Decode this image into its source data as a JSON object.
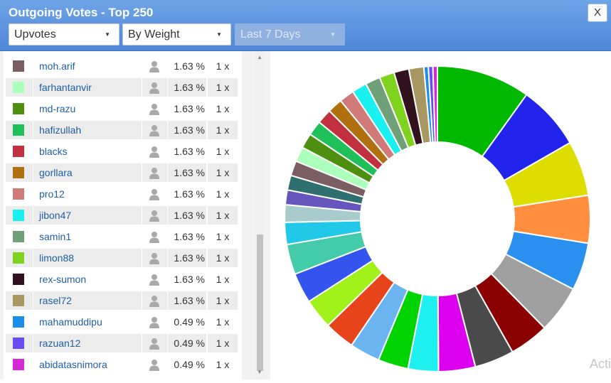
{
  "window": {
    "title": "Outgoing Votes - Top 250",
    "close_label": "X"
  },
  "filters": {
    "vote_type": "Upvotes",
    "sort": "By Weight",
    "period": "Last 7 Days"
  },
  "list": [
    {
      "name": "moh.arif",
      "color": "#7a5e62",
      "pct": "1.63 %",
      "count": "1 x"
    },
    {
      "name": "farhantanvir",
      "color": "#aaffbb",
      "pct": "1.63 %",
      "count": "1 x"
    },
    {
      "name": "md-razu",
      "color": "#4f8f10",
      "pct": "1.63 %",
      "count": "1 x"
    },
    {
      "name": "hafizullah",
      "color": "#1fbf5a",
      "pct": "1.63 %",
      "count": "1 x"
    },
    {
      "name": "blacks",
      "color": "#c0303f",
      "pct": "1.63 %",
      "count": "1 x"
    },
    {
      "name": "gorllara",
      "color": "#b07010",
      "pct": "1.63 %",
      "count": "1 x"
    },
    {
      "name": "pro12",
      "color": "#d07a7a",
      "pct": "1.63 %",
      "count": "1 x"
    },
    {
      "name": "jibon47",
      "color": "#19f0f0",
      "pct": "1.63 %",
      "count": "1 x"
    },
    {
      "name": "samin1",
      "color": "#6fa07a",
      "pct": "1.63 %",
      "count": "1 x"
    },
    {
      "name": "limon88",
      "color": "#7fd31f",
      "pct": "1.63 %",
      "count": "1 x"
    },
    {
      "name": "rex-sumon",
      "color": "#33121f",
      "pct": "1.63 %",
      "count": "1 x"
    },
    {
      "name": "rasel72",
      "color": "#a89760",
      "pct": "1.63 %",
      "count": "1 x"
    },
    {
      "name": "mahamuddipu",
      "color": "#1b8fe8",
      "pct": "0.49 %",
      "count": "1 x"
    },
    {
      "name": "razuan12",
      "color": "#6a4cf5",
      "pct": "0.49 %",
      "count": "1 x"
    },
    {
      "name": "abidatasnimora",
      "color": "#d62ad6",
      "pct": "0.49 %",
      "count": "1 x"
    }
  ],
  "chart_data": {
    "type": "pie",
    "donut": true,
    "slices": [
      {
        "color": "#00b800",
        "value": 10.2
      },
      {
        "color": "#2323ee",
        "value": 7.0
      },
      {
        "color": "#dddd00",
        "value": 6.0
      },
      {
        "color": "#ff8f3f",
        "value": 5.2
      },
      {
        "color": "#2a90f0",
        "value": 5.2
      },
      {
        "color": "#a0a0a0",
        "value": 5.2
      },
      {
        "color": "#8b0000",
        "value": 4.3
      },
      {
        "color": "#4a4a4a",
        "value": 4.3
      },
      {
        "color": "#dd00ee",
        "value": 4.0
      },
      {
        "color": "#1ef0f0",
        "value": 3.3
      },
      {
        "color": "#00d400",
        "value": 3.3
      },
      {
        "color": "#6ab4f0",
        "value": 3.3
      },
      {
        "color": "#e8441c",
        "value": 3.3
      },
      {
        "color": "#a0f21a",
        "value": 3.3
      },
      {
        "color": "#3355ee",
        "value": 3.3
      },
      {
        "color": "#44ccaa",
        "value": 3.3
      },
      {
        "color": "#22c8e8",
        "value": 2.4
      },
      {
        "color": "#a8cccc",
        "value": 1.9
      },
      {
        "color": "#6655bb",
        "value": 1.6
      },
      {
        "color": "#2f6f6f",
        "value": 1.6
      },
      {
        "color": "#7a5e62",
        "value": 1.63
      },
      {
        "color": "#aaffbb",
        "value": 1.63
      },
      {
        "color": "#4f8f10",
        "value": 1.63
      },
      {
        "color": "#1fbf5a",
        "value": 1.63
      },
      {
        "color": "#c0303f",
        "value": 1.63
      },
      {
        "color": "#b07010",
        "value": 1.63
      },
      {
        "color": "#d07a7a",
        "value": 1.63
      },
      {
        "color": "#19f0f0",
        "value": 1.63
      },
      {
        "color": "#6fa07a",
        "value": 1.63
      },
      {
        "color": "#7fd31f",
        "value": 1.63
      },
      {
        "color": "#33121f",
        "value": 1.63
      },
      {
        "color": "#a89760",
        "value": 1.63
      },
      {
        "color": "#1b8fe8",
        "value": 0.49
      },
      {
        "color": "#6a4cf5",
        "value": 0.49
      },
      {
        "color": "#d62ad6",
        "value": 0.49
      }
    ]
  },
  "watermark": "Acti"
}
